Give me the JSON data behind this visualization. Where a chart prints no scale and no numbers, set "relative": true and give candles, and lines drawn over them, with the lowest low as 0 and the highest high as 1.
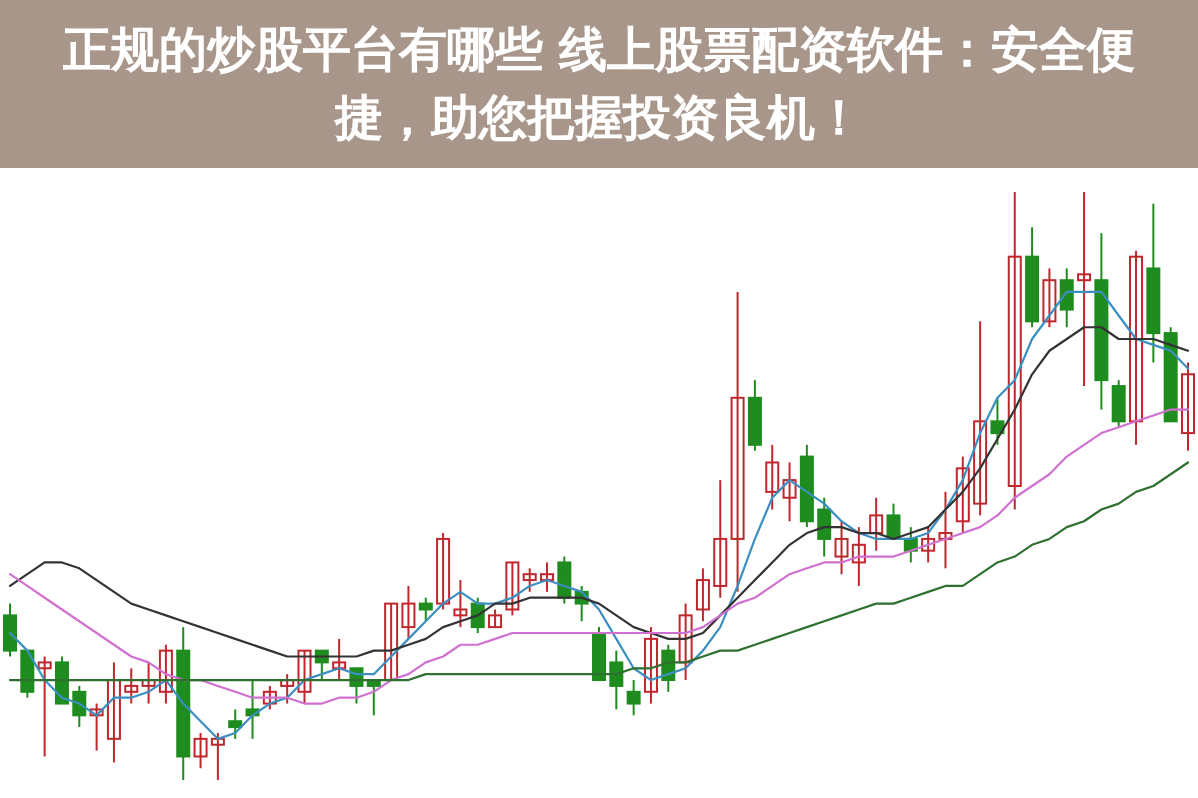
{
  "chart_data": {
    "type": "candlestick",
    "title": "正规的炒股平台有哪些 线上股票配资软件：安全便捷，助您把握投资良机！",
    "relative": true,
    "categories": [
      null,
      null,
      null,
      null,
      null,
      null,
      null,
      null,
      null,
      null,
      null,
      null,
      null,
      null,
      null,
      null,
      null,
      null,
      null,
      null,
      null,
      null,
      null,
      null,
      null,
      null,
      null,
      null,
      null,
      null,
      null,
      null,
      null,
      null,
      null,
      null,
      null,
      null,
      null,
      null,
      null,
      null,
      null,
      null,
      null,
      null,
      null,
      null,
      null,
      null,
      null,
      null,
      null,
      null,
      null,
      null,
      null,
      null,
      null,
      null,
      null,
      null,
      null,
      null,
      null,
      null,
      null,
      null,
      null
    ],
    "ohlc": [
      [
        0.28,
        0.3,
        0.21,
        0.22
      ],
      [
        0.22,
        0.22,
        0.14,
        0.15
      ],
      [
        0.19,
        0.21,
        0.04,
        0.2
      ],
      [
        0.2,
        0.21,
        0.13,
        0.13
      ],
      [
        0.15,
        0.16,
        0.09,
        0.11
      ],
      [
        0.11,
        0.13,
        0.05,
        0.12
      ],
      [
        0.07,
        0.2,
        0.03,
        0.17
      ],
      [
        0.15,
        0.19,
        0.13,
        0.16
      ],
      [
        0.16,
        0.2,
        0.13,
        0.17
      ],
      [
        0.15,
        0.23,
        0.13,
        0.22
      ],
      [
        0.22,
        0.26,
        0,
        0.04
      ],
      [
        0.04,
        0.08,
        0.02,
        0.07
      ],
      [
        0.06,
        0.08,
        0,
        0.07
      ],
      [
        0.1,
        0.12,
        0.07,
        0.09
      ],
      [
        0.12,
        0.17,
        0.07,
        0.11
      ],
      [
        0.13,
        0.16,
        0.12,
        0.15
      ],
      [
        0.16,
        0.18,
        0.13,
        0.17
      ],
      [
        0.15,
        0.22,
        0.13,
        0.22
      ],
      [
        0.22,
        0.22,
        0.17,
        0.2
      ],
      [
        0.19,
        0.24,
        0.17,
        0.2
      ],
      [
        0.19,
        0.19,
        0.13,
        0.16
      ],
      [
        0.17,
        0.17,
        0.11,
        0.16
      ],
      [
        0.17,
        0.3,
        0.17,
        0.3
      ],
      [
        0.26,
        0.33,
        0.24,
        0.3
      ],
      [
        0.3,
        0.31,
        0.27,
        0.29
      ],
      [
        0.3,
        0.42,
        0.29,
        0.41
      ],
      [
        0.28,
        0.34,
        0.26,
        0.29
      ],
      [
        0.3,
        0.31,
        0.25,
        0.26
      ],
      [
        0.26,
        0.29,
        0.26,
        0.28
      ],
      [
        0.29,
        0.37,
        0.28,
        0.37
      ],
      [
        0.34,
        0.36,
        0.32,
        0.35
      ],
      [
        0.34,
        0.37,
        0.32,
        0.35
      ],
      [
        0.37,
        0.38,
        0.3,
        0.31
      ],
      [
        0.32,
        0.33,
        0.27,
        0.3
      ],
      [
        0.25,
        0.26,
        0.17,
        0.17
      ],
      [
        0.2,
        0.22,
        0.12,
        0.16
      ],
      [
        0.15,
        0.17,
        0.11,
        0.13
      ],
      [
        0.15,
        0.26,
        0.13,
        0.24
      ],
      [
        0.22,
        0.23,
        0.15,
        0.17
      ],
      [
        0.2,
        0.3,
        0.17,
        0.28
      ],
      [
        0.29,
        0.36,
        0.27,
        0.34
      ],
      [
        0.33,
        0.51,
        0.31,
        0.41
      ],
      [
        0.41,
        0.83,
        0.32,
        0.65
      ],
      [
        0.65,
        0.68,
        0.56,
        0.57
      ],
      [
        0.49,
        0.57,
        0.46,
        0.54
      ],
      [
        0.48,
        0.54,
        0.44,
        0.51
      ],
      [
        0.55,
        0.57,
        0.43,
        0.44
      ],
      [
        0.46,
        0.48,
        0.38,
        0.41
      ],
      [
        0.38,
        0.44,
        0.35,
        0.41
      ],
      [
        0.37,
        0.43,
        0.33,
        0.4
      ],
      [
        0.42,
        0.48,
        0.39,
        0.45
      ],
      [
        0.45,
        0.47,
        0.41,
        0.41
      ],
      [
        0.41,
        0.43,
        0.37,
        0.39
      ],
      [
        0.39,
        0.43,
        0.37,
        0.41
      ],
      [
        0.41,
        0.49,
        0.36,
        0.42
      ],
      [
        0.44,
        0.55,
        0.42,
        0.53
      ],
      [
        0.47,
        0.78,
        0.45,
        0.61
      ],
      [
        0.61,
        0.65,
        0.57,
        0.59
      ],
      [
        0.5,
        1,
        0.46,
        0.89
      ],
      [
        0.89,
        0.94,
        0.77,
        0.78
      ],
      [
        0.78,
        0.87,
        0.77,
        0.85
      ],
      [
        0.85,
        0.87,
        0.77,
        0.8
      ],
      [
        0.85,
        1,
        0.67,
        0.86
      ],
      [
        0.85,
        0.93,
        0.63,
        0.68
      ],
      [
        0.67,
        0.68,
        0.6,
        0.61
      ],
      [
        0.61,
        0.9,
        0.57,
        0.89
      ],
      [
        0.87,
        0.98,
        0.71,
        0.76
      ],
      [
        0.76,
        0.77,
        0.61,
        0.61
      ],
      [
        0.59,
        0.71,
        0.56,
        0.69
      ]
    ],
    "colors": [
      "#1e8c1e",
      "#1e8c1e",
      "#c0272d",
      "#1e8c1e",
      "#1e8c1e",
      "#c0272d",
      "#c0272d",
      "#c0272d",
      "#c0272d",
      "#c0272d",
      "#1e8c1e",
      "#c0272d",
      "#c0272d",
      "#1e8c1e",
      "#1e8c1e",
      "#c0272d",
      "#c0272d",
      "#c0272d",
      "#1e8c1e",
      "#c0272d",
      "#1e8c1e",
      "#1e8c1e",
      "#c0272d",
      "#c0272d",
      "#1e8c1e",
      "#c0272d",
      "#c0272d",
      "#1e8c1e",
      "#c0272d",
      "#c0272d",
      "#c0272d",
      "#c0272d",
      "#1e8c1e",
      "#1e8c1e",
      "#1e8c1e",
      "#1e8c1e",
      "#1e8c1e",
      "#c0272d",
      "#1e8c1e",
      "#c0272d",
      "#c0272d",
      "#c0272d",
      "#c0272d",
      "#1e8c1e",
      "#c0272d",
      "#c0272d",
      "#1e8c1e",
      "#1e8c1e",
      "#c0272d",
      "#c0272d",
      "#c0272d",
      "#1e8c1e",
      "#1e8c1e",
      "#c0272d",
      "#c0272d",
      "#c0272d",
      "#c0272d",
      "#1e8c1e",
      "#c0272d",
      "#1e8c1e",
      "#c0272d",
      "#1e8c1e",
      "#c0272d",
      "#1e8c1e",
      "#1e8c1e",
      "#c0272d",
      "#1e8c1e",
      "#1e8c1e",
      "#c0272d"
    ],
    "series": [
      {
        "type": "line",
        "color": "#3a8fc0",
        "values": [
          0.25,
          0.22,
          0.17,
          0.14,
          0.13,
          0.11,
          0.14,
          0.14,
          0.15,
          0.17,
          0.13,
          0.1,
          0.07,
          0.08,
          0.11,
          0.13,
          0.14,
          0.17,
          0.18,
          0.19,
          0.18,
          0.18,
          0.21,
          0.24,
          0.27,
          0.3,
          0.32,
          0.3,
          0.3,
          0.31,
          0.33,
          0.34,
          0.33,
          0.32,
          0.29,
          0.24,
          0.19,
          0.17,
          0.18,
          0.19,
          0.22,
          0.26,
          0.33,
          0.41,
          0.48,
          0.51,
          0.49,
          0.47,
          0.44,
          0.42,
          0.41,
          0.41,
          0.41,
          0.42,
          0.46,
          0.51,
          0.59,
          0.65,
          0.68,
          0.75,
          0.79,
          0.83,
          0.83,
          0.83,
          0.79,
          0.75,
          0.74,
          0.73,
          0.7
        ]
      },
      {
        "type": "line",
        "color": "#333333",
        "values": [
          0.33,
          0.35,
          0.37,
          0.37,
          0.36,
          0.34,
          0.32,
          0.3,
          0.29,
          0.28,
          0.27,
          0.26,
          0.25,
          0.24,
          0.23,
          0.22,
          0.21,
          0.21,
          0.21,
          0.21,
          0.21,
          0.22,
          0.22,
          0.23,
          0.24,
          0.26,
          0.27,
          0.28,
          0.3,
          0.3,
          0.31,
          0.31,
          0.31,
          0.31,
          0.3,
          0.28,
          0.26,
          0.25,
          0.24,
          0.24,
          0.25,
          0.28,
          0.31,
          0.34,
          0.37,
          0.4,
          0.42,
          0.43,
          0.43,
          0.42,
          0.42,
          0.41,
          0.42,
          0.43,
          0.46,
          0.49,
          0.53,
          0.58,
          0.63,
          0.69,
          0.73,
          0.75,
          0.77,
          0.77,
          0.75,
          0.75,
          0.75,
          0.74,
          0.73
        ]
      },
      {
        "type": "line",
        "color": "#d070d0",
        "values": [
          0.35,
          0.33,
          0.31,
          0.29,
          0.27,
          0.25,
          0.23,
          0.21,
          0.2,
          0.18,
          0.17,
          0.17,
          0.16,
          0.15,
          0.14,
          0.14,
          0.14,
          0.13,
          0.13,
          0.14,
          0.14,
          0.15,
          0.17,
          0.18,
          0.2,
          0.21,
          0.23,
          0.23,
          0.24,
          0.25,
          0.25,
          0.25,
          0.25,
          0.25,
          0.25,
          0.25,
          0.25,
          0.25,
          0.25,
          0.25,
          0.26,
          0.28,
          0.3,
          0.31,
          0.33,
          0.35,
          0.36,
          0.37,
          0.37,
          0.38,
          0.38,
          0.38,
          0.39,
          0.4,
          0.41,
          0.42,
          0.43,
          0.45,
          0.48,
          0.5,
          0.52,
          0.55,
          0.57,
          0.59,
          0.6,
          0.61,
          0.62,
          0.63,
          0.63
        ]
      },
      {
        "type": "line",
        "color": "#2f6f2f",
        "values": [
          0.17,
          0.17,
          0.17,
          0.17,
          0.17,
          0.17,
          0.17,
          0.17,
          0.17,
          0.17,
          0.17,
          0.17,
          0.17,
          0.17,
          0.17,
          0.17,
          0.17,
          0.17,
          0.17,
          0.17,
          0.17,
          0.17,
          0.17,
          0.17,
          0.18,
          0.18,
          0.18,
          0.18,
          0.18,
          0.18,
          0.18,
          0.18,
          0.18,
          0.18,
          0.18,
          0.18,
          0.19,
          0.19,
          0.2,
          0.2,
          0.21,
          0.22,
          0.22,
          0.23,
          0.24,
          0.25,
          0.26,
          0.27,
          0.28,
          0.29,
          0.3,
          0.3,
          0.31,
          0.32,
          0.33,
          0.33,
          0.35,
          0.37,
          0.38,
          0.4,
          0.41,
          0.43,
          0.44,
          0.46,
          0.47,
          0.49,
          0.5,
          0.52,
          0.54
        ]
      }
    ]
  }
}
